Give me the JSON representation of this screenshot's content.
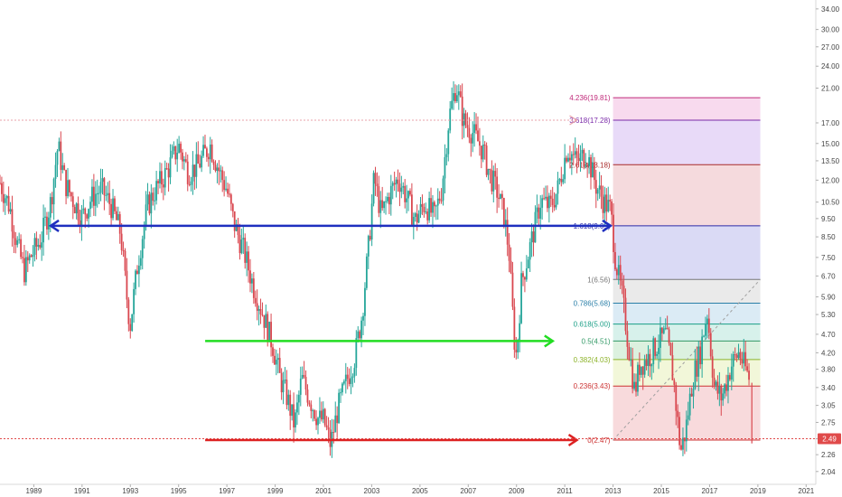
{
  "chart_data": {
    "type": "candlestick",
    "title": "",
    "xlabel": "",
    "ylabel": "",
    "y_scale": "log",
    "ylim": [
      1.95,
      35.5
    ],
    "xlim": [
      1987.6,
      2021.4
    ],
    "x_tick_labels": [
      "1989",
      "1991",
      "1993",
      "1995",
      "1997",
      "1999",
      "2001",
      "2003",
      "2005",
      "2007",
      "2009",
      "2011",
      "2013",
      "2015",
      "2017",
      "2019",
      "2021"
    ],
    "y_tick_labels": [
      "34.00",
      "30.00",
      "27.00",
      "24.00",
      "21.00",
      "17.00",
      "15.00",
      "13.50",
      "12.00",
      "10.50",
      "9.50",
      "8.50",
      "7.50",
      "6.70",
      "5.90",
      "5.30",
      "4.70",
      "4.20",
      "3.80",
      "3.40",
      "3.05",
      "2.75",
      "2.49",
      "2.26",
      "2.04"
    ],
    "current_price": "2.49",
    "price_path": [
      [
        1987.6,
        11.8
      ],
      [
        1988.0,
        10.2
      ],
      [
        1988.3,
        8.2
      ],
      [
        1988.6,
        6.9
      ],
      [
        1988.9,
        7.6
      ],
      [
        1989.3,
        8.4
      ],
      [
        1989.7,
        10.5
      ],
      [
        1990.0,
        14.8
      ],
      [
        1990.3,
        11.8
      ],
      [
        1990.7,
        10.4
      ],
      [
        1991.0,
        9.6
      ],
      [
        1991.4,
        10.8
      ],
      [
        1991.8,
        11.4
      ],
      [
        1992.2,
        10.3
      ],
      [
        1992.6,
        8.7
      ],
      [
        1992.9,
        5.5
      ],
      [
        1993.0,
        5.0
      ],
      [
        1993.3,
        7.2
      ],
      [
        1993.7,
        10.2
      ],
      [
        1994.0,
        11.2
      ],
      [
        1994.5,
        12.6
      ],
      [
        1995.0,
        14.8
      ],
      [
        1995.4,
        12.6
      ],
      [
        1995.8,
        13.1
      ],
      [
        1996.3,
        14.9
      ],
      [
        1996.7,
        12.6
      ],
      [
        1997.0,
        11.3
      ],
      [
        1997.3,
        9.2
      ],
      [
        1997.7,
        7.8
      ],
      [
        1998.1,
        6.3
      ],
      [
        1998.5,
        5.3
      ],
      [
        1998.9,
        4.4
      ],
      [
        1999.2,
        3.6
      ],
      [
        1999.5,
        3.2
      ],
      [
        1999.8,
        2.7
      ],
      [
        2000.1,
        3.6
      ],
      [
        2000.5,
        3.1
      ],
      [
        2000.8,
        2.8
      ],
      [
        2001.0,
        2.8
      ],
      [
        2001.3,
        2.4
      ],
      [
        2001.6,
        3.0
      ],
      [
        2002.0,
        3.6
      ],
      [
        2002.3,
        4.1
      ],
      [
        2002.6,
        5.3
      ],
      [
        2002.9,
        8.4
      ],
      [
        2003.1,
        12.2
      ],
      [
        2003.4,
        9.7
      ],
      [
        2003.7,
        10.9
      ],
      [
        2004.1,
        12.2
      ],
      [
        2004.5,
        10.6
      ],
      [
        2004.8,
        9.4
      ],
      [
        2005.2,
        10.4
      ],
      [
        2005.6,
        9.6
      ],
      [
        2005.9,
        11.4
      ],
      [
        2006.2,
        17.5
      ],
      [
        2006.5,
        21.5
      ],
      [
        2006.8,
        17.2
      ],
      [
        2007.2,
        16.0
      ],
      [
        2007.6,
        14.4
      ],
      [
        2007.9,
        12.4
      ],
      [
        2008.2,
        11.2
      ],
      [
        2008.5,
        9.6
      ],
      [
        2008.7,
        7.6
      ],
      [
        2008.9,
        4.6
      ],
      [
        2009.0,
        4.1
      ],
      [
        2009.2,
        6.4
      ],
      [
        2009.6,
        8.2
      ],
      [
        2010.0,
        10.6
      ],
      [
        2010.4,
        10.2
      ],
      [
        2010.7,
        11.3
      ],
      [
        2011.1,
        14.6
      ],
      [
        2011.5,
        13.4
      ],
      [
        2011.9,
        14.2
      ],
      [
        2012.3,
        11.6
      ],
      [
        2012.6,
        10.6
      ],
      [
        2012.9,
        10.0
      ],
      [
        2013.1,
        7.4
      ],
      [
        2013.4,
        5.8
      ],
      [
        2013.6,
        4.6
      ],
      [
        2013.9,
        3.3
      ],
      [
        2014.1,
        3.9
      ],
      [
        2014.5,
        4.1
      ],
      [
        2014.9,
        4.5
      ],
      [
        2015.2,
        4.7
      ],
      [
        2015.5,
        3.6
      ],
      [
        2015.8,
        2.3
      ],
      [
        2016.0,
        2.6
      ],
      [
        2016.3,
        3.6
      ],
      [
        2016.6,
        4.2
      ],
      [
        2016.9,
        5.4
      ],
      [
        2017.2,
        3.4
      ],
      [
        2017.5,
        3.2
      ],
      [
        2017.9,
        3.9
      ],
      [
        2018.2,
        4.2
      ],
      [
        2018.5,
        3.8
      ],
      [
        2018.7,
        3.5
      ]
    ],
    "fibonacci_extension": {
      "levels": [
        {
          "label": "0.236(3.43)",
          "value": 3.43,
          "color": "#cc3333",
          "fill": "#f7d6d8"
        },
        {
          "label": "0.382(4.03)",
          "value": 4.03,
          "color": "#8db32a",
          "fill": "#f1f6d5"
        },
        {
          "label": "0.5(4.51)",
          "value": 4.51,
          "color": "#339966",
          "fill": "#d8efdc"
        },
        {
          "label": "0.618(5.00)",
          "value": 5.0,
          "color": "#1a9e86",
          "fill": "#d3efe9"
        },
        {
          "label": "0.786(5.68)",
          "value": 5.68,
          "color": "#2a7fa8",
          "fill": "#d7e9f4"
        },
        {
          "label": "1(6.56)",
          "value": 6.56,
          "color": "#777777",
          "fill": "#e8e8e8"
        },
        {
          "label": "1.618(9.09)",
          "value": 9.09,
          "color": "#2a2aa8",
          "fill": "#d6d6f4"
        },
        {
          "label": "2.618(13.18)",
          "value": 13.18,
          "color": "#a82a2a",
          "fill": "#f4d6d9"
        },
        {
          "label": "3.618(17.28)",
          "value": 17.28,
          "color": "#7a2aa8",
          "fill": "#e6d6f7"
        },
        {
          "label": "4.236(19.81)",
          "value": 19.81,
          "color": "#c02a7a",
          "fill": "#f7d6ec"
        }
      ],
      "zero_label": "0(2.47)",
      "zero_value": 2.47,
      "x_start": 2013.0,
      "x_end": 2019.1
    },
    "support_resistance_lines": [
      {
        "price": 9.09,
        "x_start": 1989.7,
        "x_end": 2012.9,
        "color": "#1f2fbf",
        "arrows": "both"
      },
      {
        "price": 4.51,
        "x_start": 1996.1,
        "x_end": 2010.5,
        "color": "#22dd22",
        "arrows": "end"
      },
      {
        "price": 2.47,
        "x_start": 1996.1,
        "x_end": 2011.5,
        "color": "#dd2222",
        "arrows": "end"
      },
      {
        "price": 17.28,
        "x_start": 1987.6,
        "x_end": 2011.5,
        "color": "#e8a0a8",
        "arrows": "end",
        "dotted": true
      }
    ]
  }
}
